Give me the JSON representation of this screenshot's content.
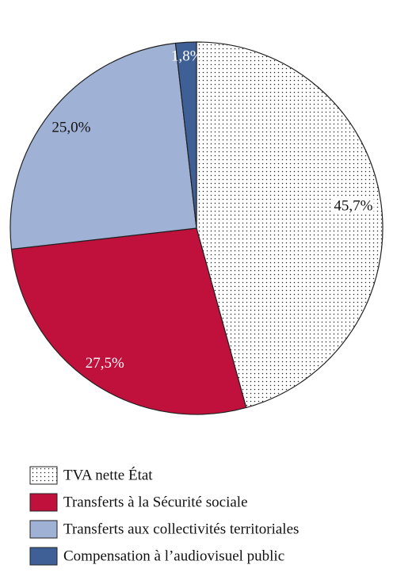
{
  "chart_data": {
    "type": "pie",
    "categories": [
      "TVA nette État",
      "Transferts à la Sécurité sociale",
      "Transferts aux collectivités territoriales",
      "Compensation à l’audiovisuel public"
    ],
    "values": [
      45.7,
      27.5,
      25.0,
      1.8
    ],
    "value_labels": [
      "45,7%",
      "27,5%",
      "25,0%",
      "1,8%"
    ],
    "colors": [
      "#ffffff",
      "#c0103c",
      "#9fb1d4",
      "#3f6096"
    ],
    "patterns": [
      "dots",
      null,
      null,
      null
    ],
    "legend": "bottom"
  }
}
